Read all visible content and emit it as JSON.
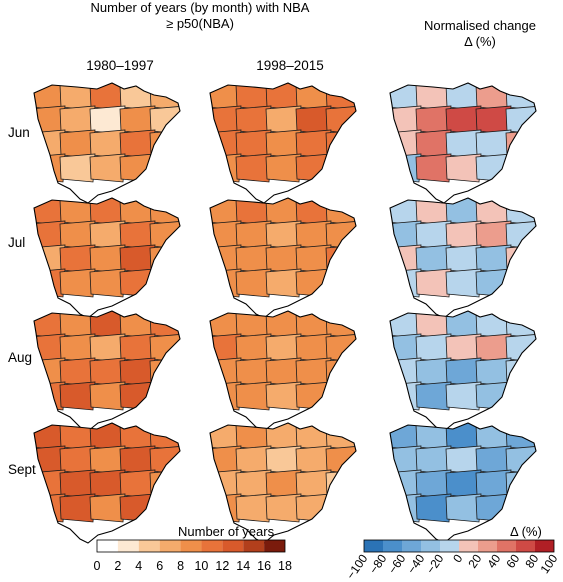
{
  "header": {
    "left_title_line1": "Number of years (by month) with NBA",
    "left_title_line2": "≥ p50(NBA)",
    "right_title_line1": "Normalised change",
    "right_title_line2": "Δ (%)"
  },
  "columns": [
    "1980–1997",
    "1998–2015"
  ],
  "rows": [
    "Jun",
    "Jul",
    "Aug",
    "Sept"
  ],
  "legend_years": {
    "title": "Number of years",
    "ticks": [
      "0",
      "2",
      "4",
      "6",
      "8",
      "10",
      "12",
      "14",
      "16",
      "18"
    ],
    "colors": [
      "#ffffff",
      "#fde9d3",
      "#f9c898",
      "#f5ab6c",
      "#ef8f4a",
      "#e8733a",
      "#d85a2b",
      "#b23f1c",
      "#7a1b0c"
    ]
  },
  "legend_change": {
    "title": "Δ (%)",
    "ticks": [
      "−100",
      "−80",
      "−60",
      "−40",
      "−20",
      "0",
      "20",
      "40",
      "60",
      "80",
      "100"
    ],
    "colors": [
      "#2b73b6",
      "#4b8fcb",
      "#6ea7d7",
      "#93c0e2",
      "#b7d5ec",
      "#f3c3b8",
      "#ec9d8d",
      "#e07366",
      "#cf4a45",
      "#b01f25"
    ]
  },
  "maps": {
    "Jun": {
      "1980–1997": [
        "#ef8f4a",
        "#f5ab6c",
        "#e8733a",
        "#f9c898",
        "#f5ab6c",
        "#ef8f4a",
        "#f5ab6c",
        "#fde9d3",
        "#ef8f4a",
        "#f9c898",
        "#f5ab6c",
        "#ef8f4a",
        "#f5ab6c",
        "#e8733a",
        "#ef8f4a",
        "#ef8f4a",
        "#f9c898",
        "#f5ab6c",
        "#ef8f4a",
        "#f9c898"
      ],
      "1998–2015": [
        "#ef8f4a",
        "#e8733a",
        "#e8733a",
        "#ef8f4a",
        "#e8733a",
        "#e8733a",
        "#e8733a",
        "#f5ab6c",
        "#d85a2b",
        "#e8733a",
        "#e8733a",
        "#e8733a",
        "#ef8f4a",
        "#e8733a",
        "#e8733a",
        "#ef8f4a",
        "#e8733a",
        "#ef8f4a",
        "#e8733a",
        "#f5ab6c"
      ],
      "change": [
        "#b7d5ec",
        "#f3c3b8",
        "#b7d5ec",
        "#ec9d8d",
        "#b7d5ec",
        "#f3c3b8",
        "#e07366",
        "#cf4a45",
        "#cf4a45",
        "#b7d5ec",
        "#f3c3b8",
        "#e07366",
        "#b7d5ec",
        "#b7d5ec",
        "#ec9d8d",
        "#93c0e2",
        "#e07366",
        "#f3c3b8",
        "#b7d5ec",
        "#f3c3b8"
      ]
    },
    "Jul": {
      "1980–1997": [
        "#e8733a",
        "#ef8f4a",
        "#e8733a",
        "#ef8f4a",
        "#ef8f4a",
        "#e8733a",
        "#ef8f4a",
        "#f5ab6c",
        "#e8733a",
        "#ef8f4a",
        "#f5ab6c",
        "#e8733a",
        "#ef8f4a",
        "#d85a2b",
        "#ef8f4a",
        "#e8733a",
        "#ef8f4a",
        "#ef8f4a",
        "#e8733a",
        "#d85a2b"
      ],
      "1998–2015": [
        "#ef8f4a",
        "#e8733a",
        "#ef8f4a",
        "#e8733a",
        "#ef8f4a",
        "#ef8f4a",
        "#ef8f4a",
        "#f5ab6c",
        "#ef8f4a",
        "#ef8f4a",
        "#ef8f4a",
        "#ef8f4a",
        "#ef8f4a",
        "#ef8f4a",
        "#e8733a",
        "#ef8f4a",
        "#ef8f4a",
        "#f5ab6c",
        "#ef8f4a",
        "#ef8f4a"
      ],
      "change": [
        "#b7d5ec",
        "#f3c3b8",
        "#93c0e2",
        "#f3c3b8",
        "#b7d5ec",
        "#93c0e2",
        "#b7d5ec",
        "#f3c3b8",
        "#ec9d8d",
        "#b7d5ec",
        "#f3c3b8",
        "#93c0e2",
        "#b7d5ec",
        "#93c0e2",
        "#f3c3b8",
        "#b7d5ec",
        "#f3c3b8",
        "#b7d5ec",
        "#93c0e2",
        "#93c0e2"
      ]
    },
    "Aug": {
      "1980–1997": [
        "#e8733a",
        "#ef8f4a",
        "#d85a2b",
        "#ef8f4a",
        "#e8733a",
        "#e8733a",
        "#ef8f4a",
        "#f5ab6c",
        "#e8733a",
        "#ef8f4a",
        "#ef8f4a",
        "#e8733a",
        "#e8733a",
        "#d85a2b",
        "#ef8f4a",
        "#e8733a",
        "#d85a2b",
        "#ef8f4a",
        "#d85a2b",
        "#d85a2b"
      ],
      "1998–2015": [
        "#ef8f4a",
        "#ef8f4a",
        "#ef8f4a",
        "#ef8f4a",
        "#ef8f4a",
        "#e8733a",
        "#ef8f4a",
        "#f5ab6c",
        "#ef8f4a",
        "#ef8f4a",
        "#ef8f4a",
        "#ef8f4a",
        "#ef8f4a",
        "#ef8f4a",
        "#ef8f4a",
        "#ef8f4a",
        "#ef8f4a",
        "#f5ab6c",
        "#ef8f4a",
        "#ef8f4a"
      ],
      "change": [
        "#b7d5ec",
        "#f3c3b8",
        "#93c0e2",
        "#b7d5ec",
        "#b7d5ec",
        "#93c0e2",
        "#b7d5ec",
        "#f3c3b8",
        "#ec9d8d",
        "#b7d5ec",
        "#b7d5ec",
        "#93c0e2",
        "#6ea7d7",
        "#93c0e2",
        "#b7d5ec",
        "#b7d5ec",
        "#6ea7d7",
        "#b7d5ec",
        "#93c0e2",
        "#93c0e2"
      ]
    },
    "Sept": {
      "1980–1997": [
        "#d85a2b",
        "#e8733a",
        "#d85a2b",
        "#e8733a",
        "#e8733a",
        "#d85a2b",
        "#e8733a",
        "#ef8f4a",
        "#d85a2b",
        "#e8733a",
        "#e8733a",
        "#d85a2b",
        "#d85a2b",
        "#e8733a",
        "#ef8f4a",
        "#e8733a",
        "#d85a2b",
        "#ef8f4a",
        "#d85a2b",
        "#b23f1c"
      ],
      "1998–2015": [
        "#f5ab6c",
        "#ef8f4a",
        "#f5ab6c",
        "#f5ab6c",
        "#f5ab6c",
        "#ef8f4a",
        "#f5ab6c",
        "#f9c898",
        "#f5ab6c",
        "#ef8f4a",
        "#f5ab6c",
        "#f5ab6c",
        "#ef8f4a",
        "#f5ab6c",
        "#f9c898",
        "#ef8f4a",
        "#f5ab6c",
        "#f5ab6c",
        "#f5ab6c",
        "#ef8f4a"
      ],
      "change": [
        "#6ea7d7",
        "#93c0e2",
        "#4b8fcb",
        "#93c0e2",
        "#6ea7d7",
        "#93c0e2",
        "#93c0e2",
        "#b7d5ec",
        "#6ea7d7",
        "#93c0e2",
        "#93c0e2",
        "#6ea7d7",
        "#4b8fcb",
        "#6ea7d7",
        "#93c0e2",
        "#93c0e2",
        "#4b8fcb",
        "#93c0e2",
        "#6ea7d7",
        "#4b8fcb"
      ]
    }
  }
}
